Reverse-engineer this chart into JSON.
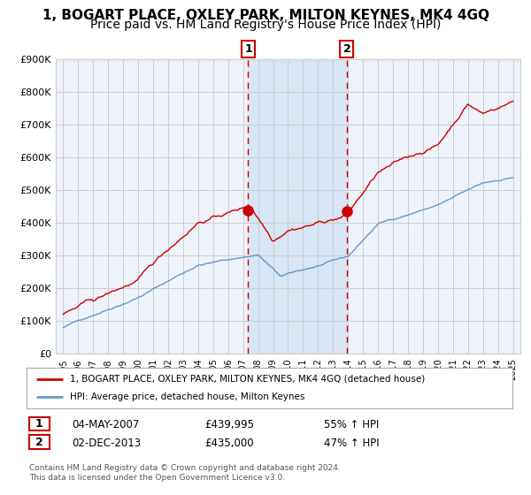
{
  "title": "1, BOGART PLACE, OXLEY PARK, MILTON KEYNES, MK4 4GQ",
  "subtitle": "Price paid vs. HM Land Registry's House Price Index (HPI)",
  "legend_line1": "1, BOGART PLACE, OXLEY PARK, MILTON KEYNES, MK4 4GQ (detached house)",
  "legend_line2": "HPI: Average price, detached house, Milton Keynes",
  "annotation1_date": "04-MAY-2007",
  "annotation1_price": "£439,995",
  "annotation1_hpi": "55% ↑ HPI",
  "annotation2_date": "02-DEC-2013",
  "annotation2_price": "£435,000",
  "annotation2_hpi": "47% ↑ HPI",
  "footnote": "Contains HM Land Registry data © Crown copyright and database right 2024.\nThis data is licensed under the Open Government Licence v3.0.",
  "red_color": "#cc0000",
  "blue_color": "#6699cc",
  "bg_color": "#ffffff",
  "plot_bg_color": "#eef2fb",
  "shade_color": "#d8e6f5",
  "grid_color": "#cccccc",
  "title_fontsize": 11,
  "subtitle_fontsize": 10,
  "ylim": [
    0,
    900000
  ],
  "yticks": [
    0,
    100000,
    200000,
    300000,
    400000,
    500000,
    600000,
    700000,
    800000,
    900000
  ],
  "ytick_labels": [
    "£0",
    "£100K",
    "£200K",
    "£300K",
    "£400K",
    "£500K",
    "£600K",
    "£700K",
    "£800K",
    "£900K"
  ],
  "purchase1_x": 2007.34,
  "purchase1_y": 439995,
  "purchase2_x": 2013.92,
  "purchase2_y": 435000,
  "vline1_x": 2007.34,
  "vline2_x": 2013.92,
  "xmin": 1994.5,
  "xmax": 2025.5
}
